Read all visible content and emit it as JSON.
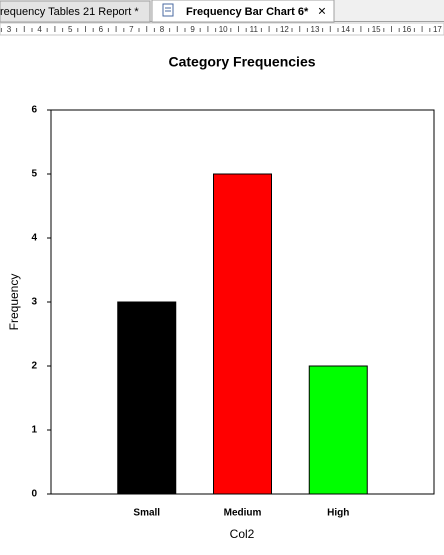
{
  "tabs": [
    {
      "label": "requency Tables 21 Report *"
    },
    {
      "label": "Frequency Bar Chart 6*",
      "close": "×"
    }
  ],
  "ruler": [
    3,
    4,
    5,
    6,
    7,
    8,
    9,
    10,
    11,
    12,
    13,
    14,
    15,
    16,
    17
  ],
  "chart_data": {
    "type": "bar",
    "title": "Category Frequencies",
    "x_label": "Col2",
    "y_label": "Frequency",
    "categories": [
      "Small",
      "Medium",
      "High"
    ],
    "values": [
      3,
      5,
      2
    ],
    "colors": [
      "#000000",
      "#ff0000",
      "#00ff00"
    ],
    "ylim": [
      0,
      6
    ],
    "yticks": [
      0,
      1,
      2,
      3,
      4,
      5,
      6
    ],
    "grid": false
  }
}
